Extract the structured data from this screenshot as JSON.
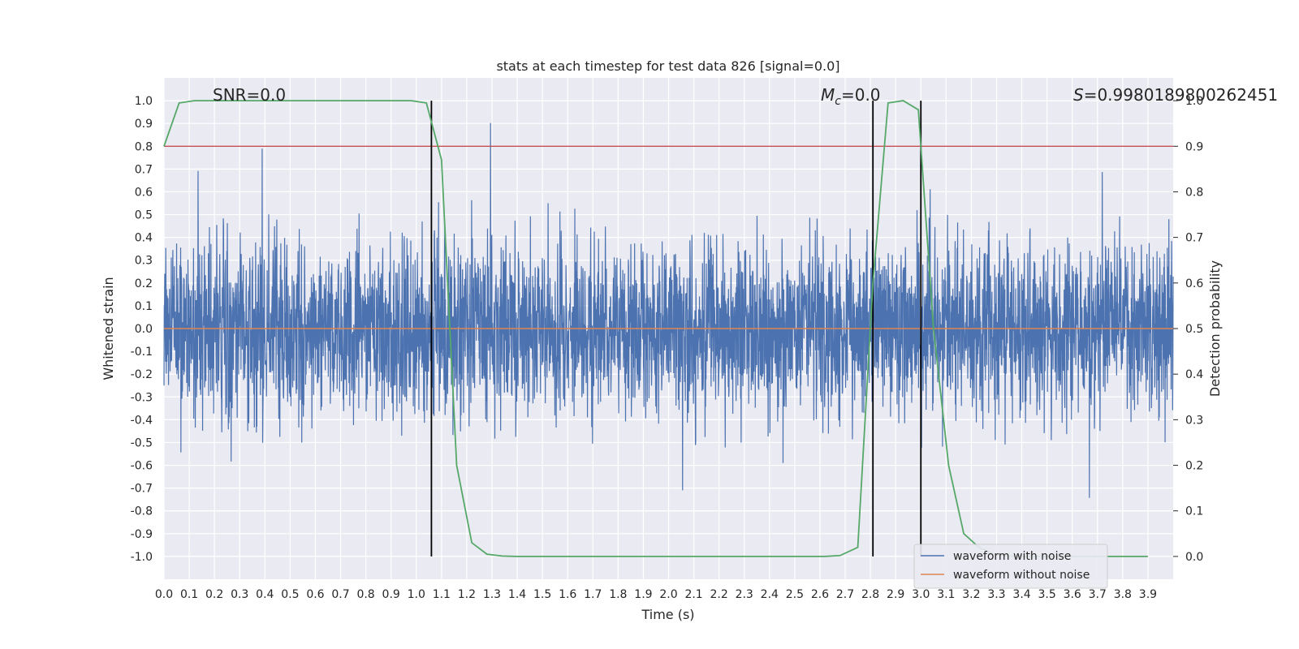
{
  "chart_data": {
    "type": "line",
    "title": "stats at each timestep for test data 826 [signal=0.0]",
    "xlabel": "Time (s)",
    "ylabel": "Whitened strain",
    "y2label": "Detection probability",
    "xlim": [
      0.0,
      4.0
    ],
    "ylim": [
      -1.1,
      1.1
    ],
    "y2lim": [
      -0.05,
      1.05
    ],
    "grid": true,
    "x_ticks": [
      "0.0",
      "0.1",
      "0.2",
      "0.3",
      "0.4",
      "0.5",
      "0.6",
      "0.7",
      "0.8",
      "0.9",
      "1.0",
      "1.1",
      "1.2",
      "1.3",
      "1.4",
      "1.5",
      "1.6",
      "1.7",
      "1.8",
      "1.9",
      "2.0",
      "2.1",
      "2.2",
      "2.3",
      "2.4",
      "2.5",
      "2.6",
      "2.7",
      "2.8",
      "2.9",
      "3.0",
      "3.1",
      "3.2",
      "3.3",
      "3.4",
      "3.5",
      "3.6",
      "3.7",
      "3.8",
      "3.9"
    ],
    "y_ticks": [
      "1.0",
      "0.9",
      "0.8",
      "0.7",
      "0.6",
      "0.5",
      "0.4",
      "0.3",
      "0.2",
      "0.1",
      "0.0",
      "-0.1",
      "-0.2",
      "-0.3",
      "-0.4",
      "-0.5",
      "-0.6",
      "-0.7",
      "-0.8",
      "-0.9",
      "-1.0"
    ],
    "y2_ticks": [
      "1.0",
      "0.9",
      "0.8",
      "0.7",
      "0.6",
      "0.5",
      "0.4",
      "0.3",
      "0.2",
      "0.1",
      "0.0"
    ],
    "annotations": {
      "snr": "SNR=0.0",
      "mc_symbol": "M",
      "mc_sub": "c",
      "mc_value": "=0.0",
      "s_symbol": "S",
      "s_value": "=0.9980189800262451"
    },
    "threshold": {
      "value": 0.9,
      "axis": "y2",
      "color": "#c44e52"
    },
    "vertical_lines": [
      1.06,
      2.81,
      3.0
    ],
    "series": [
      {
        "name": "waveform with noise",
        "color": "#4c72b0",
        "axis": "y",
        "description": "dense noise, amplitude mostly within ±0.45 with spikes up to ~1.0",
        "seed": 826,
        "samples": 4000
      },
      {
        "name": "waveform without noise",
        "color": "#dd8452",
        "axis": "y",
        "x": [
          0.0,
          4.0
        ],
        "values": [
          0.0,
          0.0
        ]
      },
      {
        "color": "#55a868",
        "axis": "y2",
        "x": [
          0.0,
          0.06,
          0.12,
          0.18,
          0.25,
          0.31,
          0.37,
          0.43,
          0.49,
          0.55,
          0.61,
          0.67,
          0.73,
          0.79,
          0.85,
          0.92,
          0.98,
          1.04,
          1.1,
          1.16,
          1.22,
          1.28,
          1.34,
          1.4,
          1.47,
          1.53,
          1.59,
          1.65,
          1.71,
          1.77,
          1.83,
          1.89,
          1.95,
          2.01,
          2.08,
          2.14,
          2.2,
          2.26,
          2.32,
          2.38,
          2.44,
          2.5,
          2.56,
          2.62,
          2.68,
          2.75,
          2.81,
          2.87,
          2.93,
          2.99,
          3.05,
          3.11,
          3.17,
          3.23,
          3.29,
          3.35,
          3.42,
          3.48,
          3.54,
          3.6,
          3.66,
          3.72,
          3.78,
          3.84,
          3.9
        ],
        "values": [
          0.9,
          0.995,
          1.0,
          1.0,
          1.0,
          1.0,
          1.0,
          1.0,
          1.0,
          1.0,
          1.0,
          1.0,
          1.0,
          1.0,
          1.0,
          1.0,
          1.0,
          0.995,
          0.87,
          0.2,
          0.03,
          0.005,
          0.001,
          0.0,
          0.0,
          0.0,
          0.0,
          0.0,
          0.0,
          0.0,
          0.0,
          0.0,
          0.0,
          0.0,
          0.0,
          0.0,
          0.0,
          0.0,
          0.0,
          0.0,
          0.0,
          0.0,
          0.0,
          0.0,
          0.002,
          0.02,
          0.6,
          0.995,
          1.0,
          0.98,
          0.5,
          0.2,
          0.05,
          0.02,
          0.005,
          0.001,
          0.0,
          0.0,
          0.0,
          0.0,
          0.0,
          0.0,
          0.0,
          0.0,
          0.0
        ]
      }
    ],
    "legend": {
      "placement": "lower-right",
      "entries": [
        "waveform with noise",
        "waveform without noise"
      ]
    }
  }
}
